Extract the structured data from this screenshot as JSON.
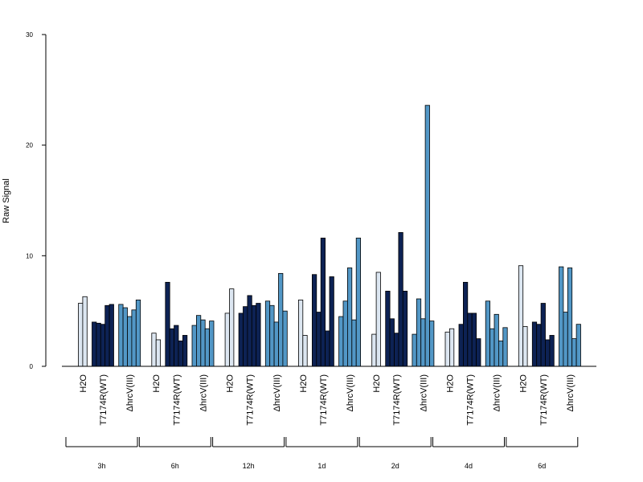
{
  "chart_data": {
    "type": "bar",
    "ylabel": "Raw Signal",
    "ylim": [
      0,
      30
    ],
    "yticks": [
      0,
      10,
      20,
      30
    ],
    "grid": false,
    "conditions": [
      {
        "label": "H2O",
        "color": "#dce6f1"
      },
      {
        "label": "T7174R(WT)",
        "color": "#0d2254"
      },
      {
        "label": "ΔhrcV(III)",
        "color": "#5297c6"
      }
    ],
    "timepoints": [
      {
        "label": "3h",
        "values": [
          [
            5.7,
            6.3
          ],
          [
            4.0,
            3.9,
            3.8,
            5.5,
            5.6
          ],
          [
            5.6,
            5.3,
            4.5,
            5.1,
            6.0
          ]
        ]
      },
      {
        "label": "6h",
        "values": [
          [
            3.0,
            2.4
          ],
          [
            7.6,
            3.4,
            3.7,
            2.3,
            2.8
          ],
          [
            3.7,
            4.6,
            4.2,
            3.4,
            4.1
          ]
        ]
      },
      {
        "label": "12h",
        "values": [
          [
            4.8,
            7.0
          ],
          [
            4.8,
            5.4,
            6.4,
            5.5,
            5.7
          ],
          [
            5.9,
            5.5,
            4.0,
            8.4,
            5.0
          ]
        ]
      },
      {
        "label": "1d",
        "values": [
          [
            6.0,
            2.8
          ],
          [
            8.3,
            4.9,
            11.6,
            3.2,
            8.1
          ],
          [
            4.5,
            5.9,
            8.9,
            4.2,
            11.6
          ]
        ]
      },
      {
        "label": "2d",
        "values": [
          [
            2.9,
            8.5
          ],
          [
            6.8,
            4.3,
            3.0,
            12.1,
            6.8
          ],
          [
            2.9,
            6.1,
            4.3,
            23.6,
            4.1
          ]
        ]
      },
      {
        "label": "4d",
        "values": [
          [
            3.1,
            3.4
          ],
          [
            3.8,
            7.6,
            4.8,
            4.8,
            2.5
          ],
          [
            5.9,
            3.4,
            4.7,
            2.3,
            3.5
          ]
        ]
      },
      {
        "label": "6d",
        "values": [
          [
            9.1,
            3.6
          ],
          [
            4.0,
            3.8,
            5.7,
            2.4,
            2.8
          ],
          [
            9.0,
            4.9,
            8.9,
            2.5,
            3.8
          ]
        ]
      }
    ]
  }
}
